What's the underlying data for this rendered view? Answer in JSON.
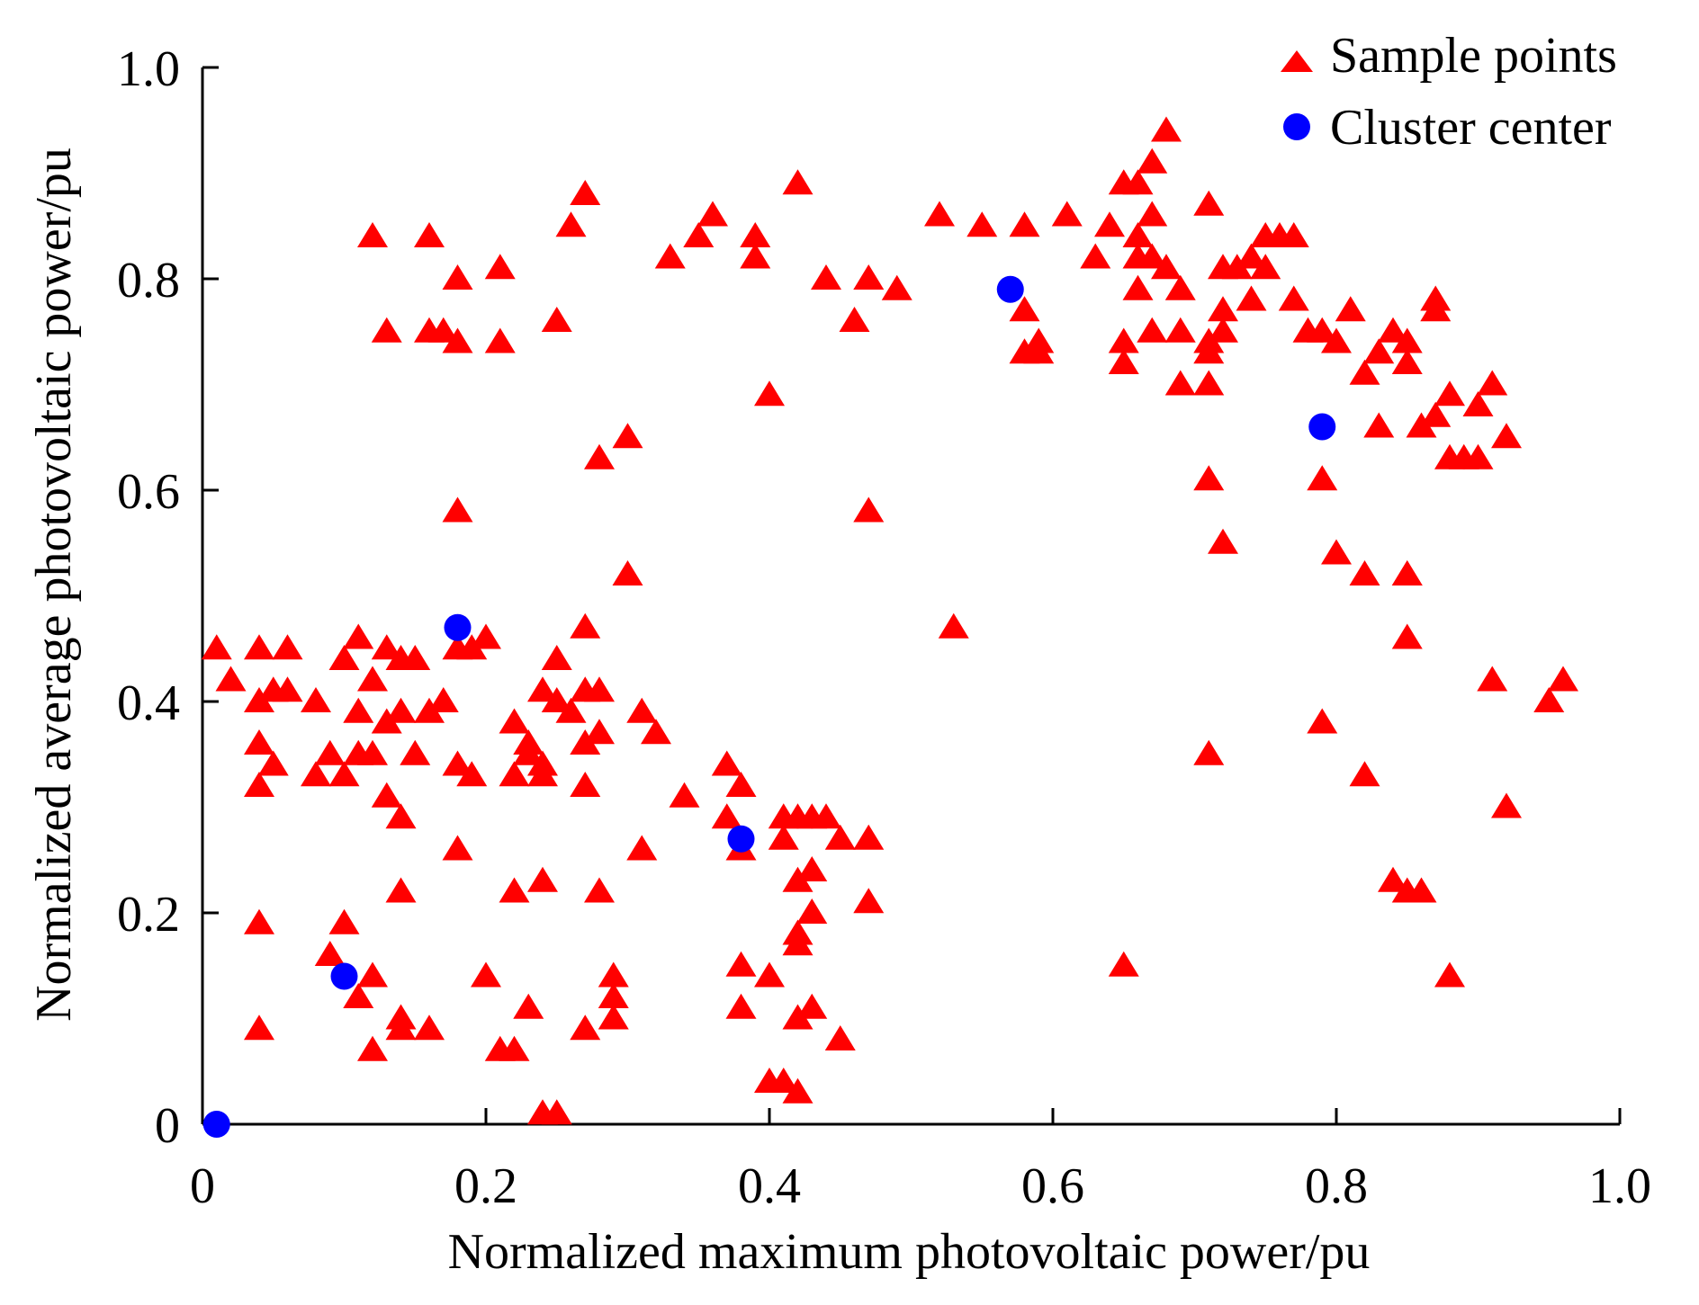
{
  "chart_data": {
    "type": "scatter",
    "title": "",
    "xlabel": "Normalized maximum photovoltaic power/pu",
    "ylabel": "Normalized average photovoltaic power/pu",
    "xlim": [
      0,
      1.0
    ],
    "ylim": [
      0,
      1.0
    ],
    "xticks": [
      0,
      0.2,
      0.4,
      0.6,
      0.8,
      1.0
    ],
    "yticks": [
      0,
      0.2,
      0.4,
      0.6,
      0.8,
      1.0
    ],
    "xtick_labels": [
      "0",
      "0.2",
      "0.4",
      "0.6",
      "0.8",
      "1.0"
    ],
    "ytick_labels": [
      "0",
      "0.2",
      "0.4",
      "0.6",
      "0.8",
      "1.0"
    ],
    "grid": false,
    "legend_position": "top-right",
    "series": [
      {
        "name": "Sample points",
        "marker": "triangle",
        "color": "#ff0000",
        "points": [
          [
            0.01,
            0.45
          ],
          [
            0.04,
            0.45
          ],
          [
            0.06,
            0.45
          ],
          [
            0.02,
            0.42
          ],
          [
            0.04,
            0.4
          ],
          [
            0.05,
            0.41
          ],
          [
            0.06,
            0.41
          ],
          [
            0.04,
            0.36
          ],
          [
            0.05,
            0.34
          ],
          [
            0.04,
            0.32
          ],
          [
            0.08,
            0.4
          ],
          [
            0.08,
            0.33
          ],
          [
            0.09,
            0.35
          ],
          [
            0.1,
            0.33
          ],
          [
            0.11,
            0.35
          ],
          [
            0.11,
            0.39
          ],
          [
            0.1,
            0.44
          ],
          [
            0.11,
            0.46
          ],
          [
            0.12,
            0.42
          ],
          [
            0.12,
            0.35
          ],
          [
            0.13,
            0.45
          ],
          [
            0.14,
            0.44
          ],
          [
            0.13,
            0.38
          ],
          [
            0.14,
            0.39
          ],
          [
            0.13,
            0.31
          ],
          [
            0.14,
            0.29
          ],
          [
            0.15,
            0.35
          ],
          [
            0.15,
            0.44
          ],
          [
            0.16,
            0.39
          ],
          [
            0.17,
            0.4
          ],
          [
            0.18,
            0.45
          ],
          [
            0.19,
            0.45
          ],
          [
            0.2,
            0.46
          ],
          [
            0.18,
            0.34
          ],
          [
            0.19,
            0.33
          ],
          [
            0.18,
            0.26
          ],
          [
            0.14,
            0.22
          ],
          [
            0.04,
            0.19
          ],
          [
            0.04,
            0.09
          ],
          [
            0.09,
            0.16
          ],
          [
            0.1,
            0.19
          ],
          [
            0.12,
            0.14
          ],
          [
            0.11,
            0.12
          ],
          [
            0.12,
            0.07
          ],
          [
            0.14,
            0.1
          ],
          [
            0.14,
            0.09
          ],
          [
            0.16,
            0.09
          ],
          [
            0.2,
            0.14
          ],
          [
            0.21,
            0.07
          ],
          [
            0.22,
            0.38
          ],
          [
            0.22,
            0.33
          ],
          [
            0.23,
            0.36
          ],
          [
            0.23,
            0.35
          ],
          [
            0.24,
            0.34
          ],
          [
            0.24,
            0.41
          ],
          [
            0.25,
            0.4
          ],
          [
            0.25,
            0.44
          ],
          [
            0.26,
            0.39
          ],
          [
            0.27,
            0.41
          ],
          [
            0.27,
            0.47
          ],
          [
            0.27,
            0.36
          ],
          [
            0.28,
            0.37
          ],
          [
            0.28,
            0.41
          ],
          [
            0.27,
            0.32
          ],
          [
            0.24,
            0.33
          ],
          [
            0.22,
            0.22
          ],
          [
            0.24,
            0.23
          ],
          [
            0.23,
            0.11
          ],
          [
            0.22,
            0.07
          ],
          [
            0.24,
            0.01
          ],
          [
            0.25,
            0.01
          ],
          [
            0.27,
            0.09
          ],
          [
            0.28,
            0.22
          ],
          [
            0.29,
            0.14
          ],
          [
            0.29,
            0.12
          ],
          [
            0.29,
            0.1
          ],
          [
            0.31,
            0.39
          ],
          [
            0.32,
            0.37
          ],
          [
            0.31,
            0.26
          ],
          [
            0.34,
            0.31
          ],
          [
            0.37,
            0.34
          ],
          [
            0.38,
            0.32
          ],
          [
            0.37,
            0.29
          ],
          [
            0.38,
            0.26
          ],
          [
            0.38,
            0.15
          ],
          [
            0.38,
            0.11
          ],
          [
            0.4,
            0.14
          ],
          [
            0.41,
            0.29
          ],
          [
            0.41,
            0.27
          ],
          [
            0.42,
            0.29
          ],
          [
            0.43,
            0.29
          ],
          [
            0.44,
            0.29
          ],
          [
            0.45,
            0.27
          ],
          [
            0.47,
            0.27
          ],
          [
            0.47,
            0.21
          ],
          [
            0.42,
            0.23
          ],
          [
            0.43,
            0.24
          ],
          [
            0.43,
            0.2
          ],
          [
            0.42,
            0.18
          ],
          [
            0.42,
            0.17
          ],
          [
            0.42,
            0.1
          ],
          [
            0.43,
            0.11
          ],
          [
            0.45,
            0.08
          ],
          [
            0.4,
            0.04
          ],
          [
            0.41,
            0.04
          ],
          [
            0.42,
            0.03
          ],
          [
            0.12,
            0.84
          ],
          [
            0.16,
            0.84
          ],
          [
            0.18,
            0.8
          ],
          [
            0.21,
            0.81
          ],
          [
            0.13,
            0.75
          ],
          [
            0.16,
            0.75
          ],
          [
            0.17,
            0.75
          ],
          [
            0.18,
            0.74
          ],
          [
            0.21,
            0.74
          ],
          [
            0.25,
            0.76
          ],
          [
            0.26,
            0.85
          ],
          [
            0.27,
            0.88
          ],
          [
            0.18,
            0.58
          ],
          [
            0.28,
            0.63
          ],
          [
            0.3,
            0.65
          ],
          [
            0.3,
            0.52
          ],
          [
            0.33,
            0.82
          ],
          [
            0.35,
            0.84
          ],
          [
            0.36,
            0.86
          ],
          [
            0.39,
            0.84
          ],
          [
            0.39,
            0.82
          ],
          [
            0.42,
            0.89
          ],
          [
            0.44,
            0.8
          ],
          [
            0.47,
            0.8
          ],
          [
            0.46,
            0.76
          ],
          [
            0.49,
            0.79
          ],
          [
            0.4,
            0.69
          ],
          [
            0.47,
            0.58
          ],
          [
            0.52,
            0.86
          ],
          [
            0.55,
            0.85
          ],
          [
            0.58,
            0.85
          ],
          [
            0.61,
            0.86
          ],
          [
            0.64,
            0.85
          ],
          [
            0.63,
            0.82
          ],
          [
            0.58,
            0.77
          ],
          [
            0.58,
            0.73
          ],
          [
            0.59,
            0.74
          ],
          [
            0.59,
            0.73
          ],
          [
            0.65,
            0.89
          ],
          [
            0.66,
            0.89
          ],
          [
            0.67,
            0.91
          ],
          [
            0.68,
            0.94
          ],
          [
            0.66,
            0.84
          ],
          [
            0.66,
            0.82
          ],
          [
            0.67,
            0.82
          ],
          [
            0.67,
            0.86
          ],
          [
            0.68,
            0.81
          ],
          [
            0.66,
            0.79
          ],
          [
            0.69,
            0.79
          ],
          [
            0.65,
            0.74
          ],
          [
            0.65,
            0.72
          ],
          [
            0.67,
            0.75
          ],
          [
            0.69,
            0.75
          ],
          [
            0.69,
            0.7
          ],
          [
            0.71,
            0.7
          ],
          [
            0.71,
            0.73
          ],
          [
            0.71,
            0.74
          ],
          [
            0.72,
            0.77
          ],
          [
            0.72,
            0.75
          ],
          [
            0.71,
            0.87
          ],
          [
            0.72,
            0.81
          ],
          [
            0.73,
            0.81
          ],
          [
            0.74,
            0.78
          ],
          [
            0.74,
            0.82
          ],
          [
            0.75,
            0.81
          ],
          [
            0.75,
            0.84
          ],
          [
            0.76,
            0.84
          ],
          [
            0.77,
            0.84
          ],
          [
            0.77,
            0.78
          ],
          [
            0.78,
            0.75
          ],
          [
            0.79,
            0.75
          ],
          [
            0.8,
            0.74
          ],
          [
            0.81,
            0.77
          ],
          [
            0.82,
            0.71
          ],
          [
            0.83,
            0.73
          ],
          [
            0.84,
            0.75
          ],
          [
            0.85,
            0.74
          ],
          [
            0.85,
            0.72
          ],
          [
            0.87,
            0.78
          ],
          [
            0.87,
            0.77
          ],
          [
            0.88,
            0.69
          ],
          [
            0.87,
            0.67
          ],
          [
            0.86,
            0.66
          ],
          [
            0.88,
            0.63
          ],
          [
            0.89,
            0.63
          ],
          [
            0.9,
            0.63
          ],
          [
            0.9,
            0.68
          ],
          [
            0.91,
            0.7
          ],
          [
            0.92,
            0.65
          ],
          [
            0.83,
            0.66
          ],
          [
            0.79,
            0.61
          ],
          [
            0.71,
            0.61
          ],
          [
            0.72,
            0.55
          ],
          [
            0.8,
            0.54
          ],
          [
            0.82,
            0.52
          ],
          [
            0.85,
            0.52
          ],
          [
            0.85,
            0.52
          ],
          [
            0.85,
            0.46
          ],
          [
            0.53,
            0.47
          ],
          [
            0.71,
            0.35
          ],
          [
            0.79,
            0.38
          ],
          [
            0.82,
            0.33
          ],
          [
            0.84,
            0.23
          ],
          [
            0.85,
            0.22
          ],
          [
            0.86,
            0.22
          ],
          [
            0.88,
            0.14
          ],
          [
            0.65,
            0.15
          ],
          [
            0.91,
            0.42
          ],
          [
            0.95,
            0.4
          ],
          [
            0.96,
            0.42
          ],
          [
            0.92,
            0.3
          ]
        ]
      },
      {
        "name": "Cluster center",
        "marker": "circle",
        "color": "#0000ff",
        "points": [
          [
            0.01,
            0.0
          ],
          [
            0.1,
            0.14
          ],
          [
            0.18,
            0.47
          ],
          [
            0.38,
            0.27
          ],
          [
            0.57,
            0.79
          ],
          [
            0.79,
            0.66
          ]
        ]
      }
    ]
  }
}
